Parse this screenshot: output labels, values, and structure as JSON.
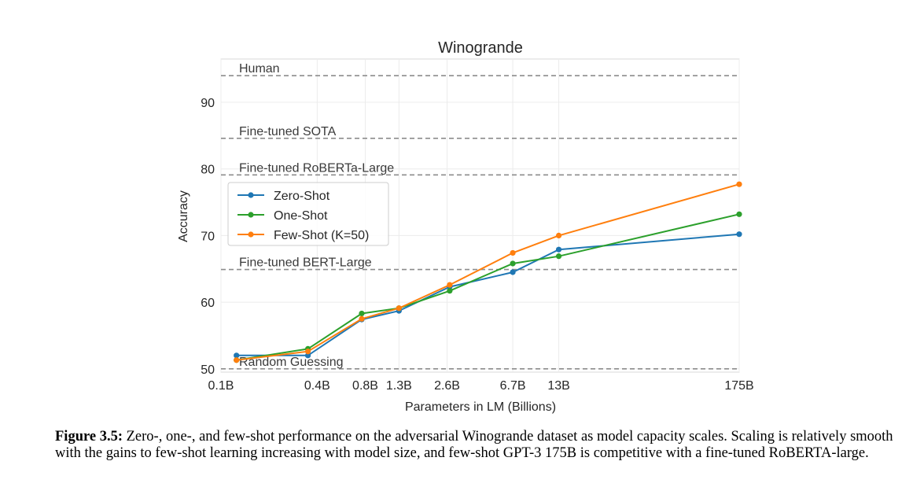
{
  "chart_data": {
    "type": "line",
    "title": "Winogrande",
    "xlabel": "Parameters in LM (Billions)",
    "ylabel": "Accuracy",
    "x_scale": "log",
    "x": [
      0.125,
      0.35,
      0.76,
      1.3,
      2.7,
      6.7,
      13,
      175
    ],
    "x_tick_values": [
      0.1,
      0.4,
      0.8,
      1.3,
      2.6,
      6.7,
      13,
      175
    ],
    "x_tick_labels": [
      "0.1B",
      "0.4B",
      "0.8B",
      "1.3B",
      "2.6B",
      "6.7B",
      "13B",
      "175B"
    ],
    "y_ticks": [
      50,
      60,
      70,
      80,
      90
    ],
    "ylim": [
      49.5,
      96.5
    ],
    "grid": true,
    "legend_position": "upper-left",
    "series": [
      {
        "name": "Zero-Shot",
        "color": "#1f77b4",
        "values": [
          52.0,
          52.0,
          57.4,
          58.7,
          62.3,
          64.5,
          67.9,
          70.2
        ]
      },
      {
        "name": "One-Shot",
        "color": "#2ca02c",
        "values": [
          51.3,
          53.0,
          58.3,
          59.1,
          61.7,
          65.8,
          66.9,
          73.2
        ]
      },
      {
        "name": "Few-Shot (K=50)",
        "color": "#ff7f0e",
        "values": [
          51.3,
          52.6,
          57.5,
          59.1,
          62.6,
          67.4,
          70.0,
          77.7
        ]
      }
    ],
    "reference_lines": [
      {
        "label": "Human",
        "value": 94.0
      },
      {
        "label": "Fine-tuned SOTA",
        "value": 84.6
      },
      {
        "label": "Fine-tuned RoBERTa-Large",
        "value": 79.1
      },
      {
        "label": "Fine-tuned BERT-Large",
        "value": 64.9
      },
      {
        "label": "Random Guessing",
        "value": 50.0
      }
    ]
  },
  "caption": {
    "label": "Figure 3.5:",
    "text": "Zero-, one-, and few-shot performance on the adversarial Winogrande dataset as model capacity scales. Scaling is relatively smooth with the gains to few-shot learning increasing with model size, and few-shot GPT-3 175B is competitive with a fine-tuned RoBERTA-large."
  }
}
